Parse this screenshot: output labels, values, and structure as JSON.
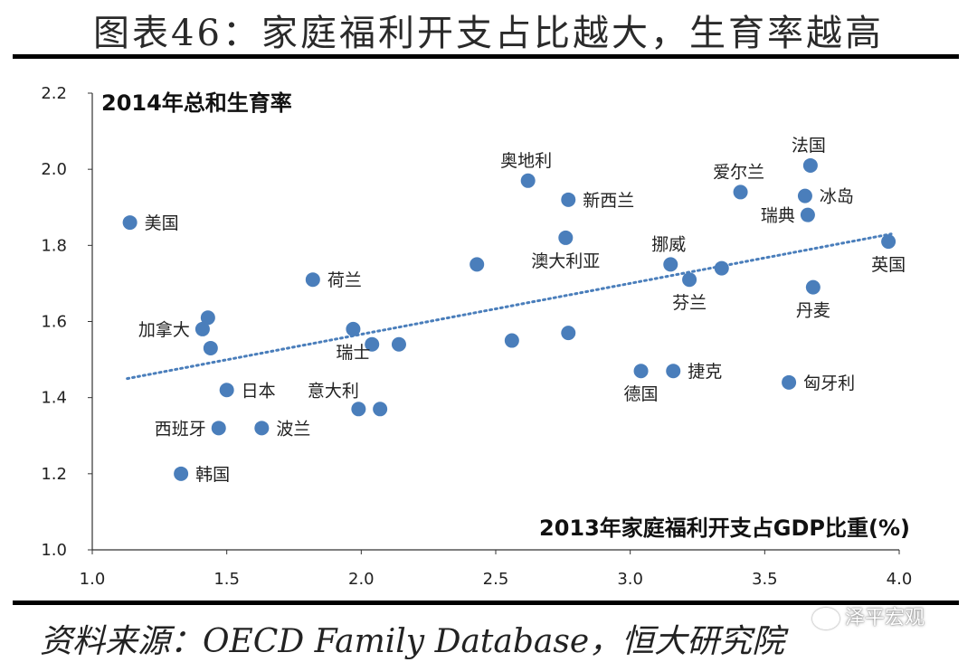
{
  "title": "图表46：家庭福利开支占比越大，生育率越高",
  "source": "资料来源：OECD Family Database，恒大研究院",
  "watermark": "泽平宏观",
  "colors": {
    "point": "#4a7ebb",
    "trend": "#4a7ebb",
    "axis": "#333333"
  },
  "chart_data": {
    "type": "scatter",
    "title": "图表46：家庭福利开支占比越大，生育率越高",
    "xlabel": "2013年家庭福利开支占GDP比重(%)",
    "ylabel": "2014年总和生育率",
    "xlim": [
      1.0,
      4.0
    ],
    "ylim": [
      1.0,
      2.2
    ],
    "xticks": [
      "1.0",
      "1.5",
      "2.0",
      "2.5",
      "3.0",
      "3.5",
      "4.0"
    ],
    "yticks": [
      "1.0",
      "1.2",
      "1.4",
      "1.6",
      "1.8",
      "2.0",
      "2.2"
    ],
    "grid": false,
    "points": [
      {
        "name": "美国",
        "x": 1.14,
        "y": 1.86,
        "label_pos": "right"
      },
      {
        "name": "荷兰",
        "x": 1.82,
        "y": 1.71,
        "label_pos": "right"
      },
      {
        "name": "加拿大",
        "x": 1.41,
        "y": 1.58,
        "label_pos": "left"
      },
      {
        "name": "",
        "x": 1.43,
        "y": 1.61
      },
      {
        "name": "",
        "x": 1.44,
        "y": 1.53
      },
      {
        "name": "日本",
        "x": 1.5,
        "y": 1.42,
        "label_pos": "right"
      },
      {
        "name": "西班牙",
        "x": 1.47,
        "y": 1.32,
        "label_pos": "left"
      },
      {
        "name": "波兰",
        "x": 1.63,
        "y": 1.32,
        "label_pos": "right"
      },
      {
        "name": "韩国",
        "x": 1.33,
        "y": 1.2,
        "label_pos": "right"
      },
      {
        "name": "瑞士",
        "x": 1.97,
        "y": 1.58,
        "label_pos": "below"
      },
      {
        "name": "",
        "x": 2.04,
        "y": 1.54
      },
      {
        "name": "",
        "x": 2.14,
        "y": 1.54
      },
      {
        "name": "意大利",
        "x": 1.99,
        "y": 1.37,
        "label_pos": "above-left"
      },
      {
        "name": "",
        "x": 2.07,
        "y": 1.37
      },
      {
        "name": "",
        "x": 2.43,
        "y": 1.75
      },
      {
        "name": "",
        "x": 2.56,
        "y": 1.55
      },
      {
        "name": "奥地利",
        "x": 2.62,
        "y": 1.97,
        "label_pos": "above"
      },
      {
        "name": "新西兰",
        "x": 2.77,
        "y": 1.92,
        "label_pos": "right"
      },
      {
        "name": "澳大利亚",
        "x": 2.76,
        "y": 1.82,
        "label_pos": "below"
      },
      {
        "name": "",
        "x": 2.77,
        "y": 1.57
      },
      {
        "name": "德国",
        "x": 3.04,
        "y": 1.47,
        "label_pos": "below"
      },
      {
        "name": "捷克",
        "x": 3.16,
        "y": 1.47,
        "label_pos": "right"
      },
      {
        "name": "挪威",
        "x": 3.15,
        "y": 1.75,
        "label_pos": "above"
      },
      {
        "name": "芬兰",
        "x": 3.22,
        "y": 1.71,
        "label_pos": "below"
      },
      {
        "name": "",
        "x": 3.34,
        "y": 1.74
      },
      {
        "name": "爱尔兰",
        "x": 3.41,
        "y": 1.94,
        "label_pos": "above"
      },
      {
        "name": "法国",
        "x": 3.67,
        "y": 2.01,
        "label_pos": "above"
      },
      {
        "name": "冰岛",
        "x": 3.65,
        "y": 1.93,
        "label_pos": "right"
      },
      {
        "name": "瑞典",
        "x": 3.66,
        "y": 1.88,
        "label_pos": "left"
      },
      {
        "name": "丹麦",
        "x": 3.68,
        "y": 1.69,
        "label_pos": "below"
      },
      {
        "name": "匈牙利",
        "x": 3.59,
        "y": 1.44,
        "label_pos": "right"
      },
      {
        "name": "英国",
        "x": 3.96,
        "y": 1.81,
        "label_pos": "below"
      }
    ],
    "trendline": {
      "x": [
        1.13,
        3.97
      ],
      "y": [
        1.45,
        1.83
      ],
      "style": "dotted"
    }
  }
}
